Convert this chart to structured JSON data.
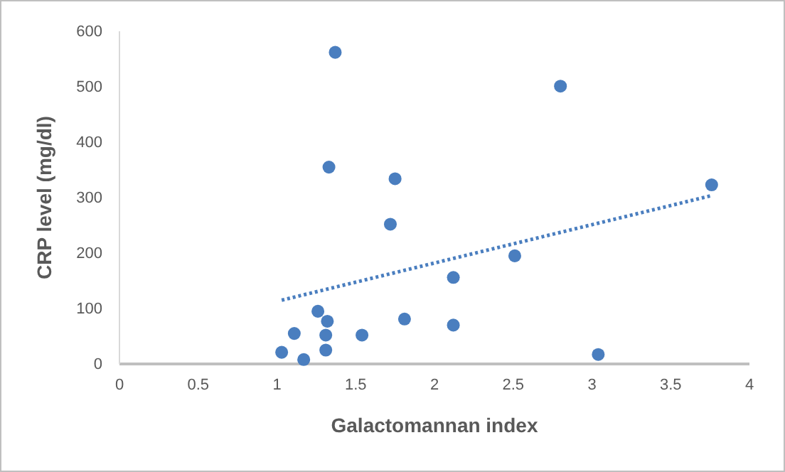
{
  "chart_data": {
    "type": "scatter",
    "xlabel": "Galactomannan index",
    "ylabel": "CRP level (mg/dl)",
    "xlim": [
      0,
      4
    ],
    "xticks": [
      0,
      0.5,
      1,
      1.5,
      2,
      2.5,
      3,
      3.5,
      4
    ],
    "ylim": [
      0,
      600
    ],
    "yticks": [
      0,
      100,
      200,
      300,
      400,
      500,
      600
    ],
    "grid": false,
    "series": [
      {
        "marker": "circle",
        "color": "#4a7ebf",
        "x": [
          1.37,
          2.8,
          1.33,
          1.75,
          3.76,
          1.72,
          2.51,
          2.12,
          1.26,
          1.32,
          1.81,
          2.12,
          1.11,
          1.31,
          1.54,
          1.03,
          1.17,
          1.31,
          3.04
        ],
        "values": [
          562,
          501,
          355,
          334,
          323,
          252,
          195,
          156,
          95,
          77,
          81,
          70,
          55,
          52,
          52,
          21,
          8,
          25,
          17
        ]
      },
      {
        "type": "line",
        "color": "#4a7ebf",
        "line_style": "dotted",
        "x": [
          1.03,
          3.75
        ],
        "values": [
          115,
          303
        ]
      }
    ]
  }
}
